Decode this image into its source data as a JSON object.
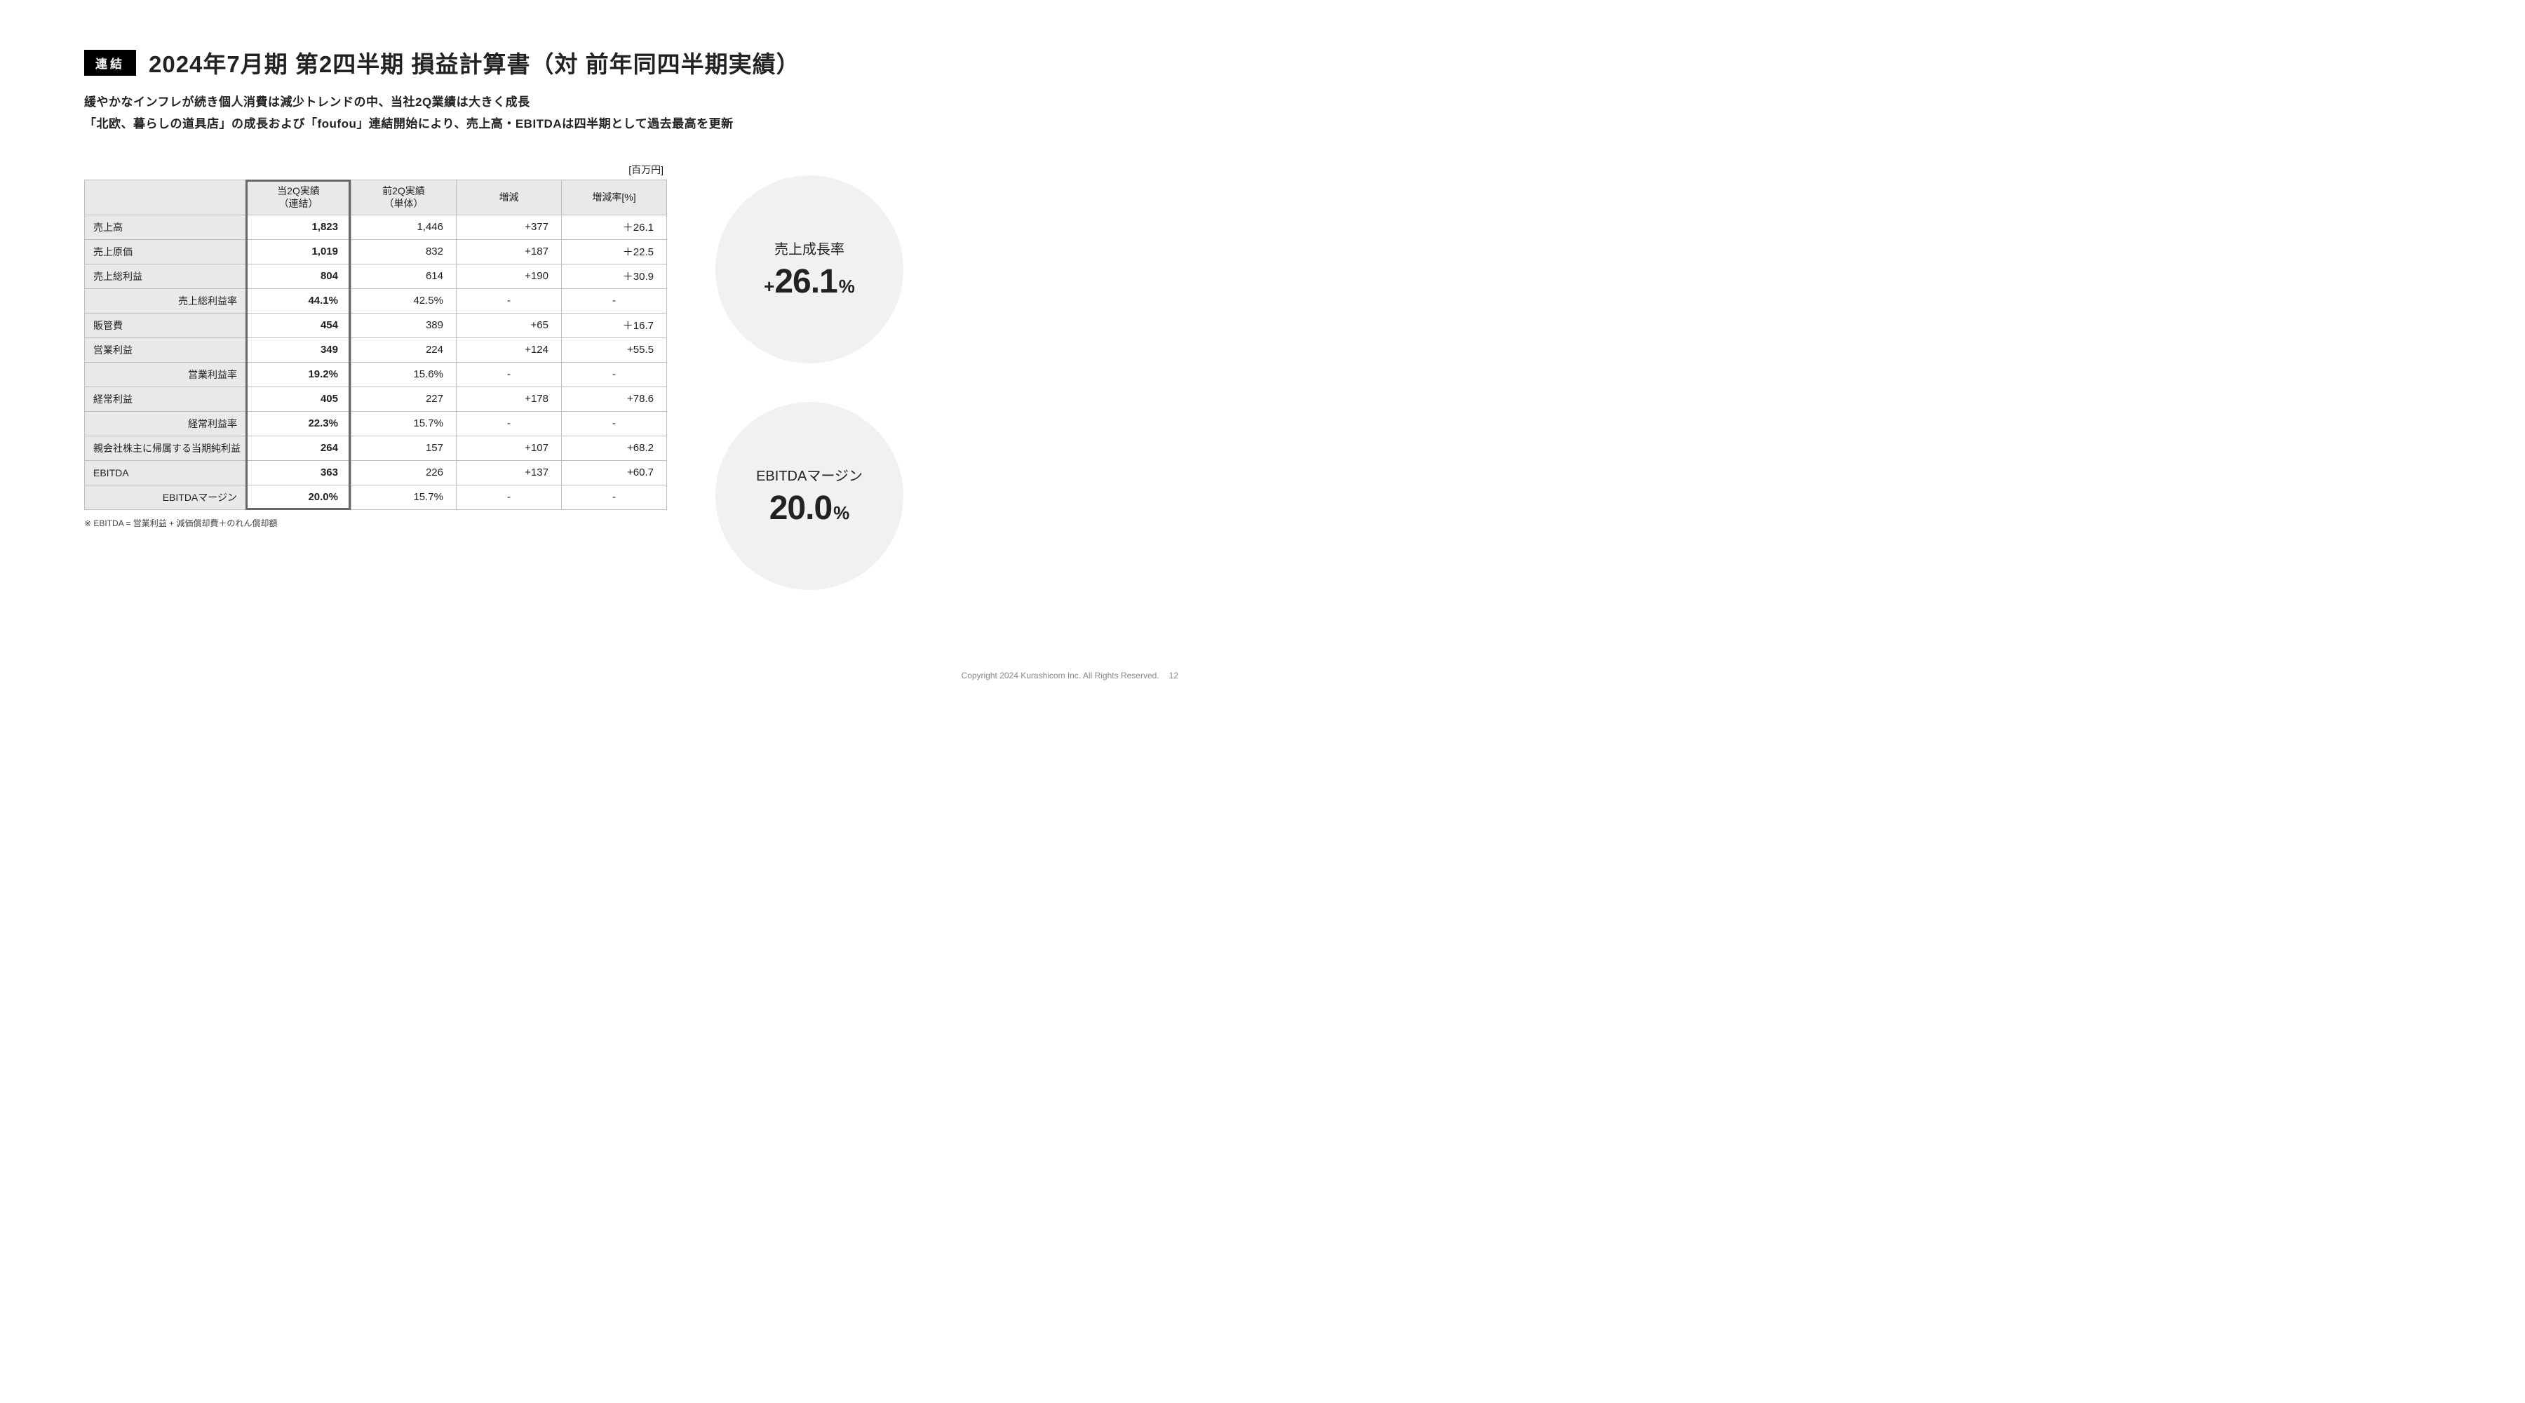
{
  "badge": "連結",
  "title": "2024年7月期 第2四半期 損益計算書（対 前年同四半期実績）",
  "subtitle_line1": "緩やかなインフレが続き個人消費は減少トレンドの中、当社2Q業績は大きく成長",
  "subtitle_line2": "「北欧、暮らしの道具店」の成長および「foufou」連結開始により、売上高・EBITDAは四半期として過去最高を更新",
  "unit_label": "[百万円]",
  "columns": {
    "c0": "",
    "c1": "当2Q実績\n（連結）",
    "c2": "前2Q実績\n（単体）",
    "c3": "増減",
    "c4": "増減率[%]"
  },
  "rows": [
    {
      "label": "売上高",
      "indent": false,
      "v1": "1,823",
      "v2": "1,446",
      "v3": "+377",
      "v4": "＋26.1"
    },
    {
      "label": "売上原価",
      "indent": false,
      "v1": "1,019",
      "v2": "832",
      "v3": "+187",
      "v4": "＋22.5"
    },
    {
      "label": "売上総利益",
      "indent": false,
      "v1": "804",
      "v2": "614",
      "v3": "+190",
      "v4": "＋30.9"
    },
    {
      "label": "売上総利益率",
      "indent": true,
      "v1": "44.1%",
      "v2": "42.5%",
      "v3": "-",
      "v4": "-"
    },
    {
      "label": "販管費",
      "indent": false,
      "v1": "454",
      "v2": "389",
      "v3": "+65",
      "v4": "＋16.7"
    },
    {
      "label": "営業利益",
      "indent": false,
      "v1": "349",
      "v2": "224",
      "v3": "+124",
      "v4": "+55.5"
    },
    {
      "label": "営業利益率",
      "indent": true,
      "v1": "19.2%",
      "v2": "15.6%",
      "v3": "-",
      "v4": "-"
    },
    {
      "label": "経常利益",
      "indent": false,
      "v1": "405",
      "v2": "227",
      "v3": "+178",
      "v4": "+78.6"
    },
    {
      "label": "経常利益率",
      "indent": true,
      "v1": "22.3%",
      "v2": "15.7%",
      "v3": "-",
      "v4": "-"
    },
    {
      "label": "親会社株主に帰属する当期純利益",
      "indent": false,
      "v1": "264",
      "v2": "157",
      "v3": "+107",
      "v4": "+68.2"
    },
    {
      "label": "EBITDA",
      "indent": false,
      "v1": "363",
      "v2": "226",
      "v3": "+137",
      "v4": "+60.7"
    },
    {
      "label": "EBITDAマージン",
      "indent": true,
      "v1": "20.0%",
      "v2": "15.7%",
      "v3": "-",
      "v4": "-"
    }
  ],
  "footnote": "※ EBITDA = 営業利益 + 減価償却費＋のれん償却額",
  "kpi": [
    {
      "label": "売上成長率",
      "prefix": "+",
      "value": "26.1",
      "unit": "%"
    },
    {
      "label": "EBITDAマージン",
      "prefix": "",
      "value": "20.0",
      "unit": "%"
    }
  ],
  "copyright": "Copyright 2024 Kurashicom Inc. All Rights Reserved.",
  "page_number": "12",
  "colors": {
    "badge_bg": "#000000",
    "badge_fg": "#ffffff",
    "cell_header_bg": "#e9e9e9",
    "cell_border": "#bfbfbf",
    "highlight_border": "#666666",
    "circle_bg": "#f1f1f1",
    "footer_color": "#888888"
  }
}
